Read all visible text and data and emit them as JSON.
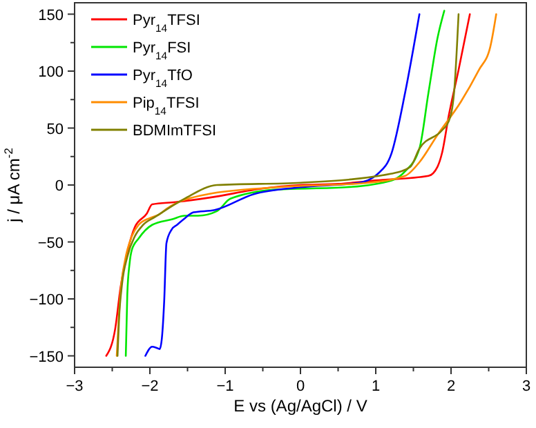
{
  "chart_data": {
    "type": "line",
    "xlabel": "E vs (Ag/AgCl) / V",
    "ylabel": "j / μA cm$^{-2}$",
    "xlim": [
      -3,
      3
    ],
    "ylim": [
      -160,
      160
    ],
    "xticks": [
      -3,
      {
        "value": -2.5,
        "label": null
      },
      -2,
      {
        "value": -1.5,
        "label": null
      },
      -1,
      {
        "value": -0.5,
        "label": null
      },
      0,
      {
        "value": 0.5,
        "label": null
      },
      1,
      {
        "value": 1.5,
        "label": null
      },
      2,
      {
        "value": 2.5,
        "label": null
      },
      3
    ],
    "yticks": [
      -150,
      {
        "value": -125,
        "label": null
      },
      -100,
      {
        "value": -75,
        "label": null
      },
      -50,
      {
        "value": -25,
        "label": null
      },
      0,
      {
        "value": 25,
        "label": null
      },
      50,
      {
        "value": 75,
        "label": null
      },
      100,
      {
        "value": 125,
        "label": null
      },
      150
    ],
    "legend": "top left",
    "grid": false,
    "line_style": "solid",
    "marker": "none",
    "series": [
      {
        "name": "Pyr$_{14}$TFSI",
        "color": "#ff0000",
        "x": [
          -2.58,
          -2.46,
          -2.39,
          -2.3,
          -2.2,
          -2.04,
          -1.97,
          -1.66,
          -1.2,
          -0.5,
          0,
          0.5,
          1.0,
          1.7,
          1.82,
          1.88,
          1.97,
          2.1,
          2.25
        ],
        "values": [
          -150,
          -126,
          -90,
          -59,
          -37,
          -25,
          -17,
          -15,
          -11,
          -3,
          0,
          1,
          4,
          8,
          16,
          28,
          61,
          101,
          150
        ]
      },
      {
        "name": "Pyr$_{14}$FSI",
        "color": "#00e600",
        "x": [
          -2.32,
          -2.3,
          -2.27,
          -2.24,
          -2.15,
          -1.97,
          -1.7,
          -1.54,
          -1.36,
          -1.11,
          -0.93,
          -0.32,
          0.6,
          1.21,
          1.39,
          1.58,
          1.7,
          1.82,
          1.91
        ],
        "values": [
          -150,
          -96,
          -69,
          -57,
          -47,
          -35,
          -30,
          -27,
          -27,
          -23,
          -12,
          -4,
          -2,
          4,
          12,
          32,
          81,
          129,
          153
        ]
      },
      {
        "name": "Pyr$_{14}$TfO",
        "color": "#0000ff",
        "x": [
          -2.06,
          -1.97,
          -1.91,
          -1.87,
          -1.84,
          -1.81,
          -1.78,
          -1.71,
          -1.64,
          -1.55,
          -1.42,
          -1.14,
          -0.62,
          0,
          0.78,
          1.03,
          1.21,
          1.39,
          1.58
        ],
        "values": [
          -150,
          -142,
          -143,
          -144,
          -134,
          -102,
          -51,
          -39,
          -35,
          -30,
          -24,
          -22,
          -8,
          -2,
          2,
          10,
          28,
          81,
          150
        ]
      },
      {
        "name": "Pip$_{14}$TFSI",
        "color": "#ff8c00",
        "x": [
          -2.44,
          -2.42,
          -2.39,
          -2.33,
          -2.24,
          -2.15,
          -2.0,
          -1.88,
          -1.78,
          -1.23,
          -0.32,
          0.9,
          1.39,
          1.58,
          1.82,
          2.13,
          2.37,
          2.52,
          2.6
        ],
        "values": [
          -150,
          -125,
          -94,
          -66,
          -45,
          -35,
          -29,
          -26,
          -21,
          -8,
          -2,
          2,
          8,
          20,
          44,
          73,
          101,
          121,
          150
        ]
      },
      {
        "name": "BDMImTFSI",
        "color": "#808000",
        "x": [
          -2.43,
          -2.41,
          -2.37,
          -2.3,
          -2.2,
          -2.09,
          -1.93,
          -1.54,
          -1.11,
          0,
          1.21,
          1.46,
          1.58,
          1.88,
          1.97,
          2.04,
          2.1
        ],
        "values": [
          -150,
          -118,
          -87,
          -63,
          -45,
          -35,
          -28,
          -12,
          0,
          2,
          10,
          16,
          32,
          48,
          56,
          81,
          150
        ]
      }
    ]
  }
}
